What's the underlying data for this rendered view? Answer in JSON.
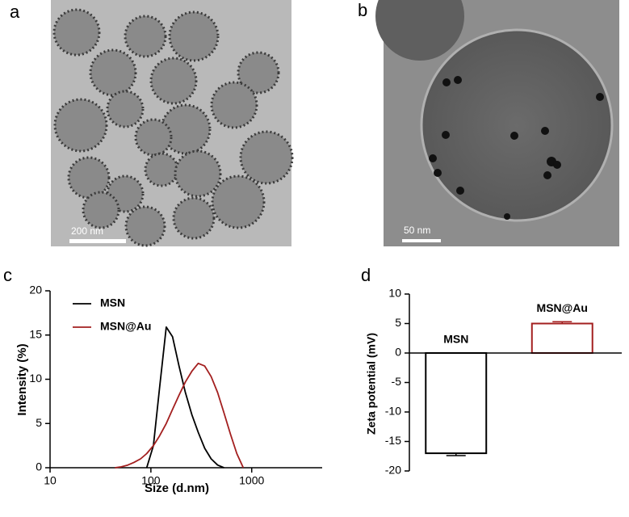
{
  "panels": [
    {
      "label": "a",
      "scale_bar": "200 nm"
    },
    {
      "label": "b",
      "scale_bar": "50 nm"
    }
  ],
  "chart_data": [
    {
      "label": "c",
      "type": "line",
      "x_label": "Size (d.nm)",
      "y_label": "Intensity (%)",
      "log_x": true,
      "xlim": [
        10,
        5000
      ],
      "xticks": [
        10,
        100,
        1000
      ],
      "ylim": [
        0,
        20
      ],
      "yticks": [
        0,
        5,
        10,
        15,
        20
      ],
      "legend": "top-left",
      "series": [
        {
          "name": "MSN",
          "color": "#000000",
          "x": [
            91,
            106,
            122,
            142,
            164,
            190,
            220,
            255,
            295,
            342,
            396,
            459,
            531
          ],
          "values": [
            0,
            2.5,
            9,
            15.9,
            14.8,
            11.5,
            8.5,
            6,
            4,
            2.2,
            1,
            0.3,
            0
          ]
        },
        {
          "name": "MSN@Au",
          "color": "#a31f1f",
          "x": [
            44,
            51,
            59,
            68,
            79,
            91,
            106,
            122,
            142,
            164,
            190,
            220,
            255,
            295,
            342,
            396,
            459,
            531,
            615,
            712,
            825
          ],
          "values": [
            0,
            0.1,
            0.3,
            0.6,
            1.0,
            1.6,
            2.5,
            3.6,
            5.0,
            6.6,
            8.2,
            9.7,
            10.9,
            11.8,
            11.5,
            10.3,
            8.5,
            6.2,
            3.8,
            1.6,
            0
          ]
        }
      ]
    },
    {
      "label": "d",
      "type": "bar",
      "y_label": "Zeta potential (mV)",
      "categories": [
        "MSN",
        "MSN@Au"
      ],
      "values": [
        -17,
        5
      ],
      "errors": [
        0.4,
        0.3
      ],
      "colors": [
        "#000000",
        "#a31f1f"
      ],
      "ylim": [
        -20,
        10
      ],
      "yticks": [
        -20,
        -15,
        -10,
        -5,
        0,
        5,
        10
      ]
    }
  ]
}
